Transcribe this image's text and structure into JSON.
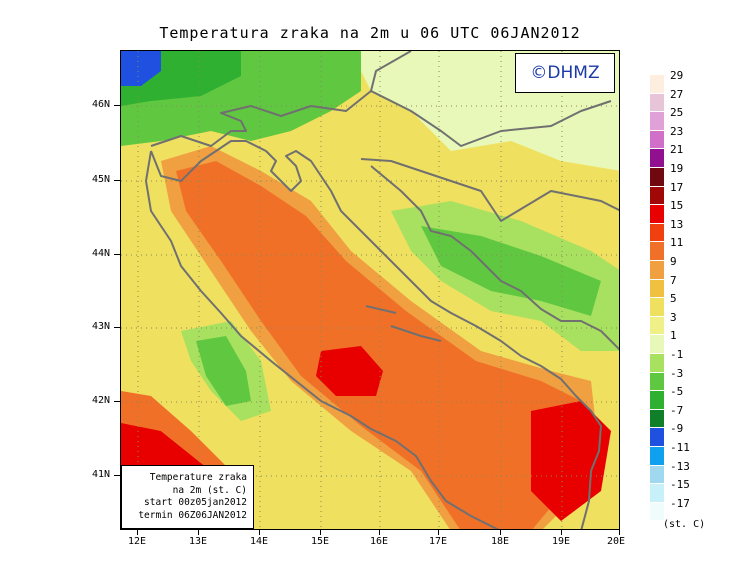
{
  "title": "Temperatura zraka na 2m u 06 UTC 06JAN2012",
  "copyright": "©DHMZ",
  "info_box": [
    "Temperature zraka",
    "na 2m (st. C)",
    "start 00z05jan2012",
    "termin 06Z06JAN2012"
  ],
  "lat_ticks": [
    "46N",
    "45N",
    "44N",
    "43N",
    "42N",
    "41N"
  ],
  "lon_ticks": [
    "12E",
    "13E",
    "14E",
    "15E",
    "16E",
    "17E",
    "18E",
    "19E",
    "20E"
  ],
  "legend": {
    "labels": [
      "29",
      "27",
      "25",
      "23",
      "21",
      "19",
      "17",
      "15",
      "13",
      "11",
      "9",
      "7",
      "5",
      "3",
      "1",
      "-1",
      "-3",
      "-5",
      "-7",
      "-9",
      "-11",
      "-13",
      "-15",
      "-17"
    ],
    "colors": [
      "#fdeee0",
      "#e8c4d8",
      "#e0a0d8",
      "#d070c8",
      "#901090",
      "#700810",
      "#a00808",
      "#e80000",
      "#f04010",
      "#f07028",
      "#f0a040",
      "#f0c040",
      "#f0e060",
      "#f0f088",
      "#e8f8b8",
      "#a8e060",
      "#60c840",
      "#30b030",
      "#108028",
      "#2050e0",
      "#10a0f0",
      "#a0d8f0",
      "#c8f0f8",
      "#f0fcfc"
    ],
    "unit": "(st. C)"
  },
  "colors": {
    "sea_warm": "#f07028",
    "sea_hot": "#e80000",
    "land_mild": "#f0e060",
    "land_cool": "#e8f8b8",
    "land_cold": "#60c840",
    "coast": "#707070"
  }
}
